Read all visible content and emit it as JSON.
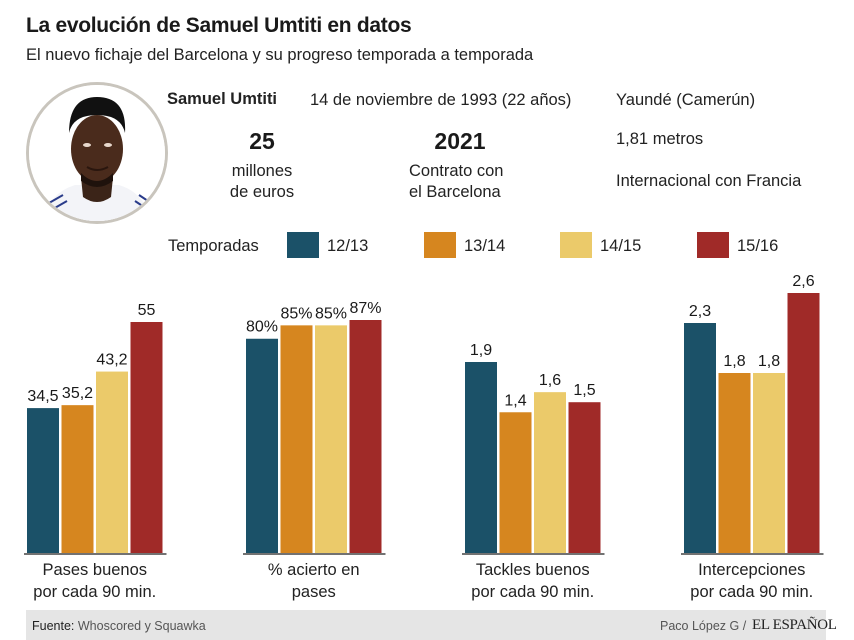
{
  "header": {
    "title": "La evolución de Samuel Umtiti en datos",
    "subtitle": "El nuevo fichaje del Barcelona y su progreso temporada a temporada"
  },
  "profile": {
    "name": "Samuel Umtiti",
    "birth": "14 de noviembre de 1993 (22 años)",
    "birthplace": "Yaundé (Camerún)",
    "height": "1,81 metros",
    "national_team": "Internacional con Francia",
    "fee": {
      "value": "25",
      "caption_1": "millones",
      "caption_2": "de euros"
    },
    "contract": {
      "value": "2021",
      "caption_1": "Contrato con",
      "caption_2": "el Barcelona"
    },
    "photo_icon": "player-photo"
  },
  "legend": {
    "title": "Temporadas",
    "items": [
      {
        "label": "12/13",
        "color": "#1b5168"
      },
      {
        "label": "13/14",
        "color": "#d6861f"
      },
      {
        "label": "14/15",
        "color": "#ebca6a"
      },
      {
        "label": "15/16",
        "color": "#a02a28"
      }
    ]
  },
  "chart_data": {
    "type": "bar",
    "title": "La evolución de Samuel Umtiti en datos",
    "categories": [
      "12/13",
      "13/14",
      "14/15",
      "15/16"
    ],
    "legend_position": "top",
    "grid": false,
    "panels": [
      {
        "label_1": "Pases buenos",
        "label_2": "por cada 90 min.",
        "values": [
          34.5,
          35.2,
          43.2,
          55
        ],
        "labels": [
          "34,5",
          "35,2",
          "43,2",
          "55"
        ]
      },
      {
        "label_1": "% acierto en",
        "label_2": "pases",
        "values": [
          80,
          85,
          85,
          87
        ],
        "labels": [
          "80%",
          "85%",
          "85%",
          "87%"
        ]
      },
      {
        "label_1": "Tackles buenos",
        "label_2": "por cada 90 min.",
        "values": [
          1.9,
          1.4,
          1.6,
          1.5
        ],
        "labels": [
          "1,9",
          "1,4",
          "1,6",
          "1,5"
        ]
      },
      {
        "label_1": "Intercepciones",
        "label_2": "por cada 90 min.",
        "values": [
          2.3,
          1.8,
          1.8,
          2.6
        ],
        "labels": [
          "2,3",
          "1,8",
          "1,8",
          "2,6"
        ]
      }
    ]
  },
  "footer": {
    "source_label": "Fuente:",
    "source_value": "Whoscored y Squawka",
    "credit": "Paco López G /",
    "brand": "EL ESPAÑOL"
  }
}
